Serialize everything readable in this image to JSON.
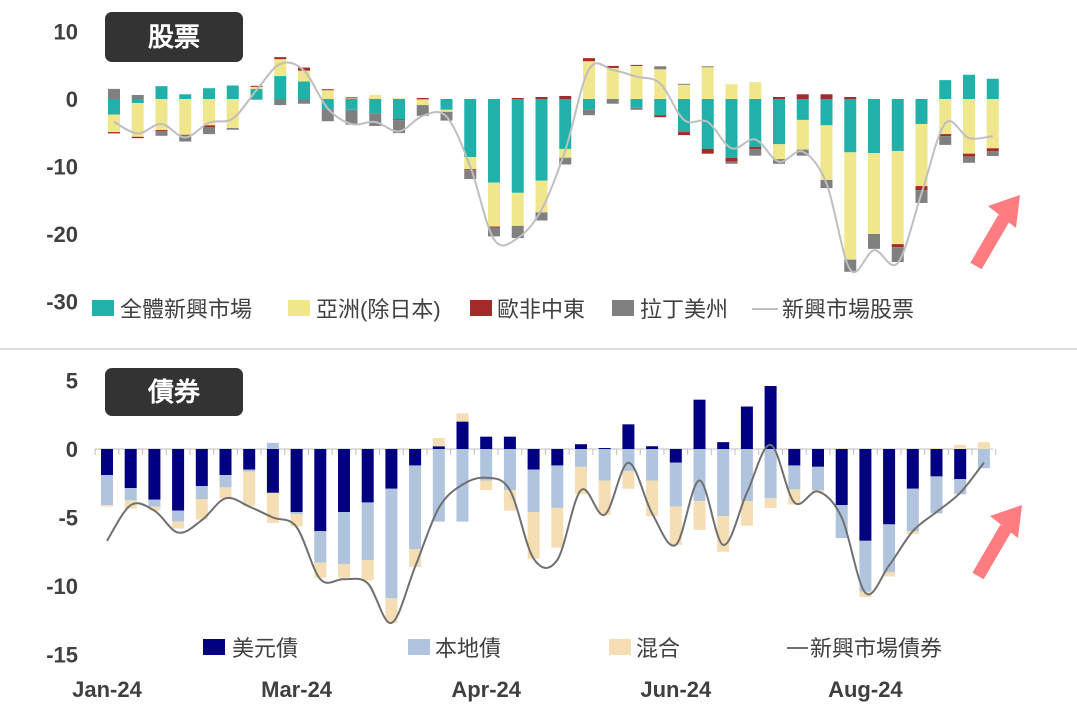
{
  "chart_data": [
    {
      "type": "bar",
      "stacked": true,
      "title": "股票",
      "ylim": [
        -30,
        10
      ],
      "yticks": [
        "10",
        "0",
        "-10",
        "-20",
        "-30"
      ],
      "ytick_values": [
        10,
        0,
        -10,
        -20,
        -30
      ],
      "legend_position": "bottom",
      "series": [
        {
          "name": "全體新興市場",
          "color": "#20B2AA",
          "values": [
            -2.3,
            -0.6,
            1.9,
            0.7,
            1.6,
            2.0,
            1.5,
            3.4,
            2.6,
            -1.5,
            -1.6,
            -2.1,
            -3.0,
            -0.1,
            -1.6,
            -8.6,
            -12.4,
            -13.9,
            -12.1,
            -7.4,
            -1.5,
            0,
            -1.3,
            -2.4,
            -4.9,
            -7.4,
            -8.7,
            -7.1,
            -6.7,
            -3.1,
            -3.9,
            -7.9,
            -8.0,
            -7.7,
            -3.7,
            2.8,
            3.6,
            3.0
          ]
        },
        {
          "name": "亞洲(除日本)",
          "color": "#F0E68C",
          "values": [
            -2.6,
            -5.0,
            -4.6,
            -5.3,
            -3.9,
            -4.3,
            0.3,
            2.5,
            1.6,
            1.3,
            0.1,
            0.6,
            0.1,
            -0.8,
            -0.3,
            -1.8,
            -6.5,
            -4.9,
            -4.7,
            -1.3,
            5.6,
            4.6,
            4.9,
            4.4,
            2.1,
            4.7,
            2.2,
            2.5,
            -2.2,
            -4.4,
            -8.1,
            -15.9,
            -12.0,
            -13.8,
            -9.2,
            -5.2,
            -8.1,
            -7.3
          ]
        },
        {
          "name": "歐非中東",
          "color": "#A52A2A",
          "values": [
            -0.2,
            -0.2,
            -0.15,
            -0.1,
            -0.3,
            0,
            0.15,
            0.3,
            0.45,
            0.15,
            0.15,
            0,
            -0.15,
            0.15,
            0,
            -0.15,
            -0.15,
            0.15,
            0.3,
            0.45,
            0.45,
            0.3,
            0.15,
            -0.3,
            -0.45,
            -0.7,
            -0.6,
            -0.3,
            0.3,
            0.7,
            0.7,
            0.3,
            0,
            -0.45,
            -0.6,
            -0.3,
            -0.45,
            -0.45
          ]
        },
        {
          "name": "拉丁美州",
          "color": "#808080",
          "values": [
            1.5,
            0.6,
            -0.7,
            -0.9,
            -1.0,
            -0.25,
            -0.1,
            -0.9,
            -0.7,
            -1.8,
            -2.2,
            -1.9,
            -1.9,
            -1.6,
            -1.3,
            -1.3,
            -1.3,
            -1.8,
            -1.2,
            -1.0,
            -0.9,
            -0.7,
            -0.3,
            0.45,
            0.15,
            0.15,
            -0.3,
            -1.0,
            -0.7,
            -0.9,
            -1.2,
            -1.8,
            -2.2,
            -2.2,
            -1.9,
            -1.3,
            -0.9,
            -0.7
          ]
        }
      ],
      "line": {
        "name": "新興市場股票",
        "color": "#BFBFBF",
        "values": [
          -3.4,
          -5.1,
          -3.7,
          -5.7,
          -3.5,
          -2.9,
          1.3,
          5.2,
          4.2,
          -1.4,
          -3.7,
          -3.4,
          -4.8,
          -2.5,
          -2.6,
          -10.0,
          -20.8,
          -20.6,
          -16.4,
          -7.6,
          4.4,
          4.3,
          3.3,
          2.3,
          -3.1,
          -3.4,
          -7.3,
          -6.0,
          -9.3,
          -7.8,
          -12.5,
          -25.3,
          -22.4,
          -24.3,
          -14.0,
          -3.6,
          -5.8,
          -5.5
        ]
      }
    },
    {
      "type": "bar",
      "stacked": true,
      "title": "債券",
      "ylim": [
        -15,
        5
      ],
      "yticks": [
        "5",
        "0",
        "-5",
        "-10",
        "-15"
      ],
      "ytick_values": [
        5,
        0,
        -5,
        -10,
        -15
      ],
      "legend_position": "bottom",
      "xtick_labels": [
        "Jan-24",
        "Mar-24",
        "Apr-24",
        "Jun-24",
        "Aug-24"
      ],
      "xtick_bar_index": [
        0,
        8,
        16,
        24,
        32
      ],
      "series": [
        {
          "name": "美元債",
          "color": "#000080",
          "values": [
            -1.9,
            -2.85,
            -3.7,
            -4.5,
            -2.7,
            -1.9,
            -1.5,
            -3.2,
            -4.6,
            -6.0,
            -4.6,
            -3.9,
            -2.9,
            -1.2,
            0.2,
            2.0,
            0.9,
            0.9,
            -1.5,
            -1.2,
            0.35,
            0.07,
            1.8,
            0.2,
            -1.0,
            3.6,
            0.5,
            3.1,
            4.6,
            -1.2,
            -1.3,
            -4.1,
            -6.7,
            -5.5,
            -2.9,
            -2.0,
            -2.2,
            0
          ]
        },
        {
          "name": "本地債",
          "color": "#B0C4DE",
          "values": [
            -2.2,
            -0.9,
            -0.5,
            -0.8,
            -0.95,
            -0.9,
            -0.15,
            0.45,
            -0.15,
            -2.3,
            -3.8,
            -4.2,
            -8.0,
            -6.1,
            -5.3,
            -5.3,
            -2.3,
            -3.0,
            -3.1,
            -3.1,
            -1.3,
            -2.3,
            -1.6,
            -2.3,
            -3.2,
            -3.8,
            -4.9,
            -3.8,
            -3.6,
            -1.75,
            -1.7,
            -2.4,
            -3.7,
            -3.5,
            -3.1,
            -2.7,
            -1.1,
            -1.4
          ]
        },
        {
          "name": "混合",
          "color": "#F5DEB3",
          "values": [
            -0.1,
            -0.6,
            -0.3,
            -0.5,
            -1.5,
            -0.8,
            -2.5,
            -2.2,
            -0.9,
            -1.1,
            -1.0,
            -1.5,
            -1.8,
            -1.3,
            0.6,
            0.6,
            -0.7,
            -1.5,
            -3.4,
            -2.9,
            -2.0,
            -2.5,
            -1.3,
            -2.6,
            -2.8,
            -2.1,
            -2.6,
            -1.8,
            -0.7,
            -1.1,
            -0.2,
            0.07,
            -0.4,
            -0.3,
            -0.2,
            0.07,
            0.3,
            0.5
          ]
        }
      ],
      "line": {
        "name": "新興市場債券",
        "color": "#707070",
        "values": [
          -6.7,
          -4.1,
          -4.5,
          -6.1,
          -5.2,
          -3.6,
          -4.2,
          -5.0,
          -5.7,
          -9.5,
          -9.5,
          -9.8,
          -12.7,
          -8.6,
          -4.3,
          -2.6,
          -2.1,
          -3.0,
          -8.0,
          -8.1,
          -3.0,
          -4.8,
          -1.0,
          -4.7,
          -7.0,
          -2.3,
          -7.0,
          -3.2,
          0.3,
          -3.9,
          -3.1,
          -5.0,
          -10.5,
          -8.5,
          -6.0,
          -4.6,
          -3.2,
          -1.0
        ]
      }
    }
  ],
  "legend_line_prefix": "—",
  "arrow_color": "#FF7C80",
  "title_bg": "#333333"
}
